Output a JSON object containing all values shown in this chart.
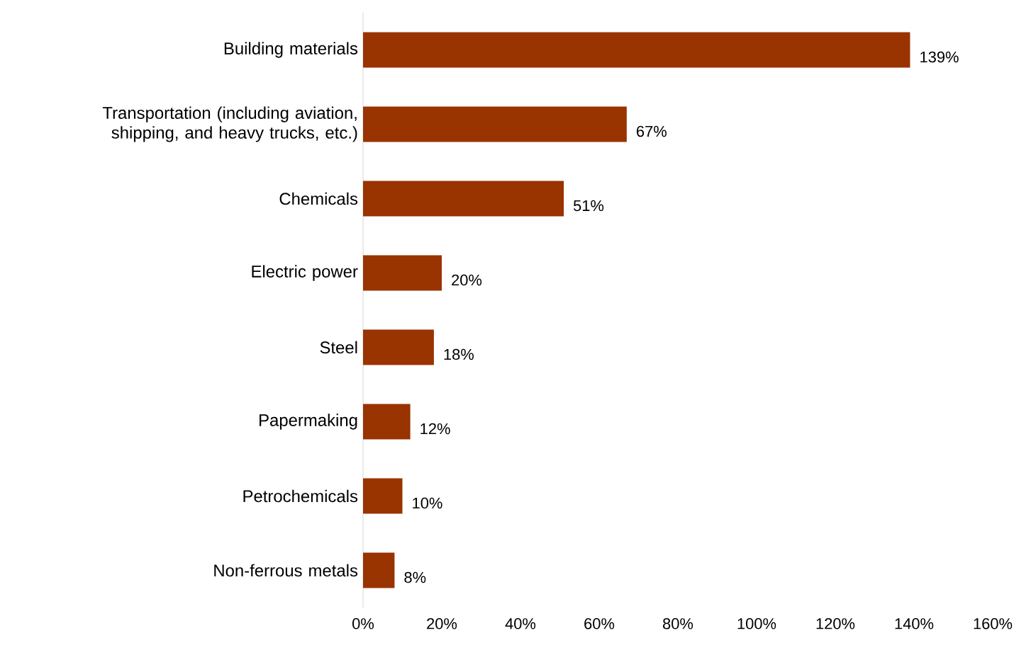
{
  "chart_data": {
    "type": "bar",
    "orientation": "horizontal",
    "categories": [
      "Building materials",
      "Transportation (including aviation, shipping, and heavy trucks, etc.)",
      "Chemicals",
      "Electric power",
      "Steel",
      "Papermaking",
      "Petrochemicals",
      "Non-ferrous metals"
    ],
    "values": [
      139,
      67,
      51,
      20,
      18,
      12,
      10,
      8
    ],
    "value_labels": [
      "139%",
      "67%",
      "51%",
      "20%",
      "18%",
      "12%",
      "10%",
      "8%"
    ],
    "color": "#993300",
    "xlim": [
      0,
      160
    ],
    "xticks": [
      {
        "value": 0,
        "label": "0%"
      },
      {
        "value": 20,
        "label": "20%"
      },
      {
        "value": 40,
        "label": "40%"
      },
      {
        "value": 60,
        "label": "60%"
      },
      {
        "value": 80,
        "label": "80%"
      },
      {
        "value": 100,
        "label": "100%"
      },
      {
        "value": 120,
        "label": "120%"
      },
      {
        "value": 140,
        "label": "140%"
      },
      {
        "value": 160,
        "label": "160%"
      }
    ],
    "grid": false
  }
}
